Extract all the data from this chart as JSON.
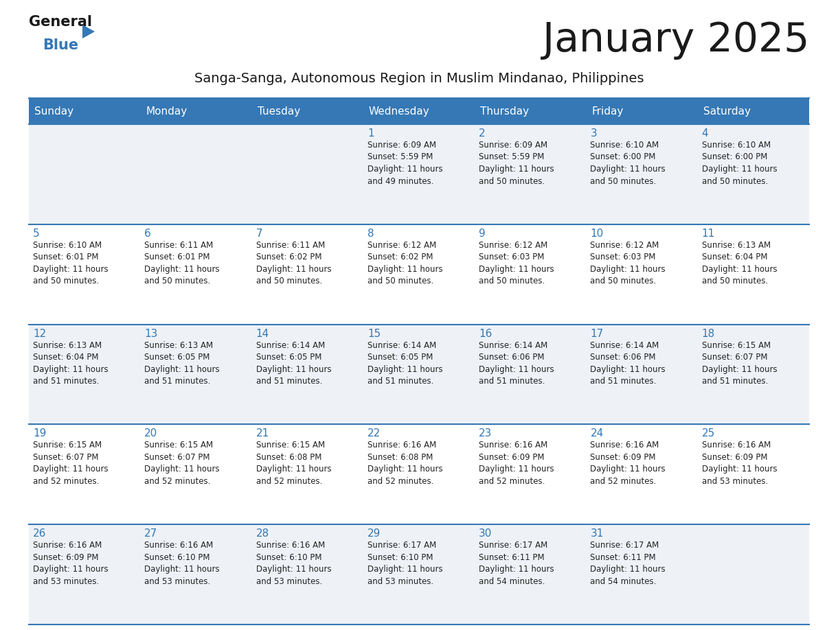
{
  "title": "January 2025",
  "subtitle": "Sanga-Sanga, Autonomous Region in Muslim Mindanao, Philippines",
  "days_of_week": [
    "Sunday",
    "Monday",
    "Tuesday",
    "Wednesday",
    "Thursday",
    "Friday",
    "Saturday"
  ],
  "header_bg": "#3578b5",
  "header_text": "#ffffff",
  "row_bg_even": "#eef2f7",
  "row_bg_odd": "#ffffff",
  "cell_border_color": "#3578b5",
  "title_color": "#1a1a1a",
  "subtitle_color": "#1a1a1a",
  "day_number_color": "#3578b5",
  "text_color": "#222222",
  "logo_black": "#1a1a1a",
  "logo_blue": "#3578b5",
  "calendar": [
    [
      {
        "day": null,
        "sunrise": null,
        "sunset": null,
        "daylight": null
      },
      {
        "day": null,
        "sunrise": null,
        "sunset": null,
        "daylight": null
      },
      {
        "day": null,
        "sunrise": null,
        "sunset": null,
        "daylight": null
      },
      {
        "day": 1,
        "sunrise": "6:09 AM",
        "sunset": "5:59 PM",
        "daylight": "11 hours and 49 minutes."
      },
      {
        "day": 2,
        "sunrise": "6:09 AM",
        "sunset": "5:59 PM",
        "daylight": "11 hours and 50 minutes."
      },
      {
        "day": 3,
        "sunrise": "6:10 AM",
        "sunset": "6:00 PM",
        "daylight": "11 hours and 50 minutes."
      },
      {
        "day": 4,
        "sunrise": "6:10 AM",
        "sunset": "6:00 PM",
        "daylight": "11 hours and 50 minutes."
      }
    ],
    [
      {
        "day": 5,
        "sunrise": "6:10 AM",
        "sunset": "6:01 PM",
        "daylight": "11 hours and 50 minutes."
      },
      {
        "day": 6,
        "sunrise": "6:11 AM",
        "sunset": "6:01 PM",
        "daylight": "11 hours and 50 minutes."
      },
      {
        "day": 7,
        "sunrise": "6:11 AM",
        "sunset": "6:02 PM",
        "daylight": "11 hours and 50 minutes."
      },
      {
        "day": 8,
        "sunrise": "6:12 AM",
        "sunset": "6:02 PM",
        "daylight": "11 hours and 50 minutes."
      },
      {
        "day": 9,
        "sunrise": "6:12 AM",
        "sunset": "6:03 PM",
        "daylight": "11 hours and 50 minutes."
      },
      {
        "day": 10,
        "sunrise": "6:12 AM",
        "sunset": "6:03 PM",
        "daylight": "11 hours and 50 minutes."
      },
      {
        "day": 11,
        "sunrise": "6:13 AM",
        "sunset": "6:04 PM",
        "daylight": "11 hours and 50 minutes."
      }
    ],
    [
      {
        "day": 12,
        "sunrise": "6:13 AM",
        "sunset": "6:04 PM",
        "daylight": "11 hours and 51 minutes."
      },
      {
        "day": 13,
        "sunrise": "6:13 AM",
        "sunset": "6:05 PM",
        "daylight": "11 hours and 51 minutes."
      },
      {
        "day": 14,
        "sunrise": "6:14 AM",
        "sunset": "6:05 PM",
        "daylight": "11 hours and 51 minutes."
      },
      {
        "day": 15,
        "sunrise": "6:14 AM",
        "sunset": "6:05 PM",
        "daylight": "11 hours and 51 minutes."
      },
      {
        "day": 16,
        "sunrise": "6:14 AM",
        "sunset": "6:06 PM",
        "daylight": "11 hours and 51 minutes."
      },
      {
        "day": 17,
        "sunrise": "6:14 AM",
        "sunset": "6:06 PM",
        "daylight": "11 hours and 51 minutes."
      },
      {
        "day": 18,
        "sunrise": "6:15 AM",
        "sunset": "6:07 PM",
        "daylight": "11 hours and 51 minutes."
      }
    ],
    [
      {
        "day": 19,
        "sunrise": "6:15 AM",
        "sunset": "6:07 PM",
        "daylight": "11 hours and 52 minutes."
      },
      {
        "day": 20,
        "sunrise": "6:15 AM",
        "sunset": "6:07 PM",
        "daylight": "11 hours and 52 minutes."
      },
      {
        "day": 21,
        "sunrise": "6:15 AM",
        "sunset": "6:08 PM",
        "daylight": "11 hours and 52 minutes."
      },
      {
        "day": 22,
        "sunrise": "6:16 AM",
        "sunset": "6:08 PM",
        "daylight": "11 hours and 52 minutes."
      },
      {
        "day": 23,
        "sunrise": "6:16 AM",
        "sunset": "6:09 PM",
        "daylight": "11 hours and 52 minutes."
      },
      {
        "day": 24,
        "sunrise": "6:16 AM",
        "sunset": "6:09 PM",
        "daylight": "11 hours and 52 minutes."
      },
      {
        "day": 25,
        "sunrise": "6:16 AM",
        "sunset": "6:09 PM",
        "daylight": "11 hours and 53 minutes."
      }
    ],
    [
      {
        "day": 26,
        "sunrise": "6:16 AM",
        "sunset": "6:09 PM",
        "daylight": "11 hours and 53 minutes."
      },
      {
        "day": 27,
        "sunrise": "6:16 AM",
        "sunset": "6:10 PM",
        "daylight": "11 hours and 53 minutes."
      },
      {
        "day": 28,
        "sunrise": "6:16 AM",
        "sunset": "6:10 PM",
        "daylight": "11 hours and 53 minutes."
      },
      {
        "day": 29,
        "sunrise": "6:17 AM",
        "sunset": "6:10 PM",
        "daylight": "11 hours and 53 minutes."
      },
      {
        "day": 30,
        "sunrise": "6:17 AM",
        "sunset": "6:11 PM",
        "daylight": "11 hours and 54 minutes."
      },
      {
        "day": 31,
        "sunrise": "6:17 AM",
        "sunset": "6:11 PM",
        "daylight": "11 hours and 54 minutes."
      },
      {
        "day": null,
        "sunrise": null,
        "sunset": null,
        "daylight": null
      }
    ]
  ]
}
